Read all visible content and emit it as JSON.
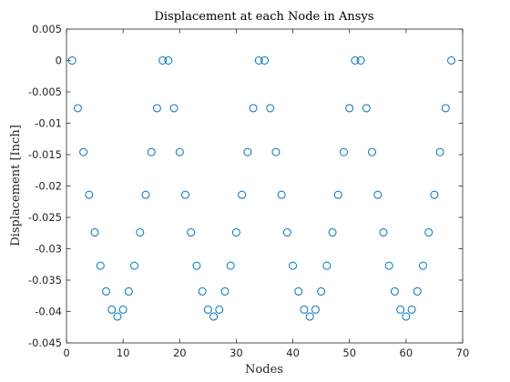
{
  "chart_data": {
    "type": "scatter",
    "title": "Displacement at each Node in Ansys",
    "xlabel": "Nodes",
    "ylabel": "Displacement [Inch]",
    "xlim": [
      0,
      70
    ],
    "ylim": [
      -0.045,
      0.005
    ],
    "xticks": [
      0,
      10,
      20,
      30,
      40,
      50,
      60,
      70
    ],
    "yticks": [
      0.005,
      0,
      -0.005,
      -0.01,
      -0.015,
      -0.02,
      -0.025,
      -0.03,
      -0.035,
      -0.04,
      -0.045
    ],
    "xtick_labels": [
      "0",
      "10",
      "20",
      "30",
      "40",
      "50",
      "60",
      "70"
    ],
    "ytick_labels": [
      "0.005",
      "0",
      "-0.005",
      "-0.01",
      "-0.015",
      "-0.02",
      "-0.025",
      "-0.03",
      "-0.035",
      "-0.04",
      "-0.045"
    ],
    "grid": false,
    "marker": "circle-open",
    "marker_color": "#0072BD",
    "series": [
      {
        "x": [
          1,
          2,
          3,
          4,
          5,
          6,
          7,
          8,
          9,
          10,
          11,
          12,
          13,
          14,
          15,
          16,
          17,
          18,
          19,
          20,
          21,
          22,
          23,
          24,
          25,
          26,
          27,
          28,
          29,
          30,
          31,
          32,
          33,
          34,
          35,
          36,
          37,
          38,
          39,
          40,
          41,
          42,
          43,
          44,
          45,
          46,
          47,
          48,
          49,
          50,
          51,
          52,
          53,
          54,
          55,
          56,
          57,
          58,
          59,
          60,
          61,
          62,
          63,
          64,
          65,
          66,
          67,
          68
        ],
        "y": [
          0,
          -0.0076,
          -0.0146,
          -0.0214,
          -0.0274,
          -0.0327,
          -0.0368,
          -0.0397,
          -0.0408,
          -0.0397,
          -0.0368,
          -0.0327,
          -0.0274,
          -0.0214,
          -0.0146,
          -0.0076,
          0,
          0,
          -0.0076,
          -0.0146,
          -0.0214,
          -0.0274,
          -0.0327,
          -0.0368,
          -0.0397,
          -0.0408,
          -0.0397,
          -0.0368,
          -0.0327,
          -0.0274,
          -0.0214,
          -0.0146,
          -0.0076,
          0,
          0,
          -0.0076,
          -0.0146,
          -0.0214,
          -0.0274,
          -0.0327,
          -0.0368,
          -0.0397,
          -0.0408,
          -0.0397,
          -0.0368,
          -0.0327,
          -0.0274,
          -0.0214,
          -0.0146,
          -0.0076,
          0,
          0,
          -0.0076,
          -0.0146,
          -0.0214,
          -0.0274,
          -0.0327,
          -0.0368,
          -0.0397,
          -0.0408,
          -0.0397,
          -0.0368,
          -0.0327,
          -0.0274,
          -0.0214,
          -0.0146,
          -0.0076,
          0
        ]
      }
    ]
  }
}
